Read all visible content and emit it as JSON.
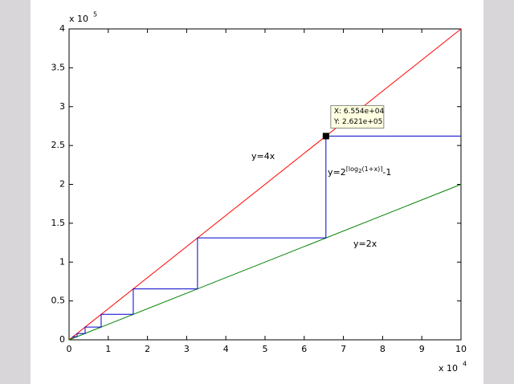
{
  "chart_data": {
    "type": "line",
    "x_multiplier": {
      "base": "x 10",
      "exponent": "4"
    },
    "y_multiplier": {
      "base": "x 10",
      "exponent": "5"
    },
    "xlim": [
      0,
      10
    ],
    "ylim": [
      0,
      4
    ],
    "xticks": [
      0,
      1,
      2,
      3,
      4,
      5,
      6,
      7,
      8,
      9,
      10
    ],
    "yticks": [
      0,
      0.5,
      1,
      1.5,
      2,
      2.5,
      3,
      3.5,
      4
    ],
    "grid": false,
    "series": [
      {
        "color": "#ff0000",
        "x": [
          0,
          10
        ],
        "values": [
          0,
          4
        ]
      },
      {
        "color": "#008000",
        "x": [
          0,
          10
        ],
        "values": [
          0,
          2
        ]
      },
      {
        "color": "#0000cc",
        "x": [
          0.102,
          0.102,
          0.205,
          0.205,
          0.41,
          0.41,
          0.819,
          0.819,
          1.638,
          1.638,
          3.277,
          3.277,
          6.554,
          6.554,
          10
        ],
        "values": [
          0.02,
          0.041,
          0.041,
          0.082,
          0.082,
          0.164,
          0.164,
          0.328,
          0.328,
          0.655,
          0.655,
          1.311,
          1.311,
          2.621,
          2.621
        ]
      }
    ],
    "annotations": [
      {
        "text": "y=4x",
        "color": "#ff0000"
      },
      {
        "text": "y=2x",
        "color": "#008000"
      },
      {
        "color": "#0000cc",
        "parts": [
          "y=2",
          "⌈log",
          "2",
          "(1+x)⌉",
          "-1"
        ]
      }
    ],
    "datatip": {
      "x": 6.554,
      "y": 2.621,
      "x_text": "X: 6.554e+04",
      "y_text": "Y: 2.621e+05"
    }
  }
}
